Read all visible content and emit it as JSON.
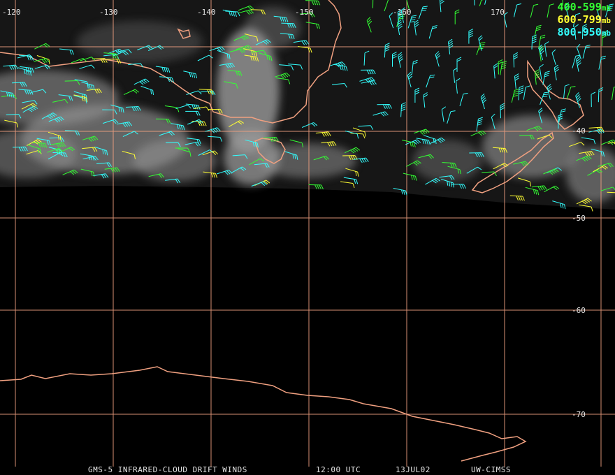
{
  "lon_labels": [
    "-120",
    "-130",
    "-140",
    "-150",
    "-160",
    "170"
  ],
  "lat_labels": [
    "-40",
    "-50",
    "-60",
    "-70"
  ],
  "legend": [
    {
      "range": "400-599",
      "unit": "mb",
      "color": "#33ff33"
    },
    {
      "range": "600-799",
      "unit": "mb",
      "color": "#ffff33"
    },
    {
      "range": "800-950",
      "unit": "mb",
      "color": "#33ffff"
    }
  ],
  "caption": {
    "product": "GMS-5 INFRARED-CLOUD DRIFT WINDS",
    "time": "12:00 UTC",
    "date": "13JUL02",
    "source": "UW-CIMSS"
  },
  "colors": {
    "grid": "#f0a080",
    "coast": "#f0a080",
    "cloud": "#c8c8c8"
  }
}
